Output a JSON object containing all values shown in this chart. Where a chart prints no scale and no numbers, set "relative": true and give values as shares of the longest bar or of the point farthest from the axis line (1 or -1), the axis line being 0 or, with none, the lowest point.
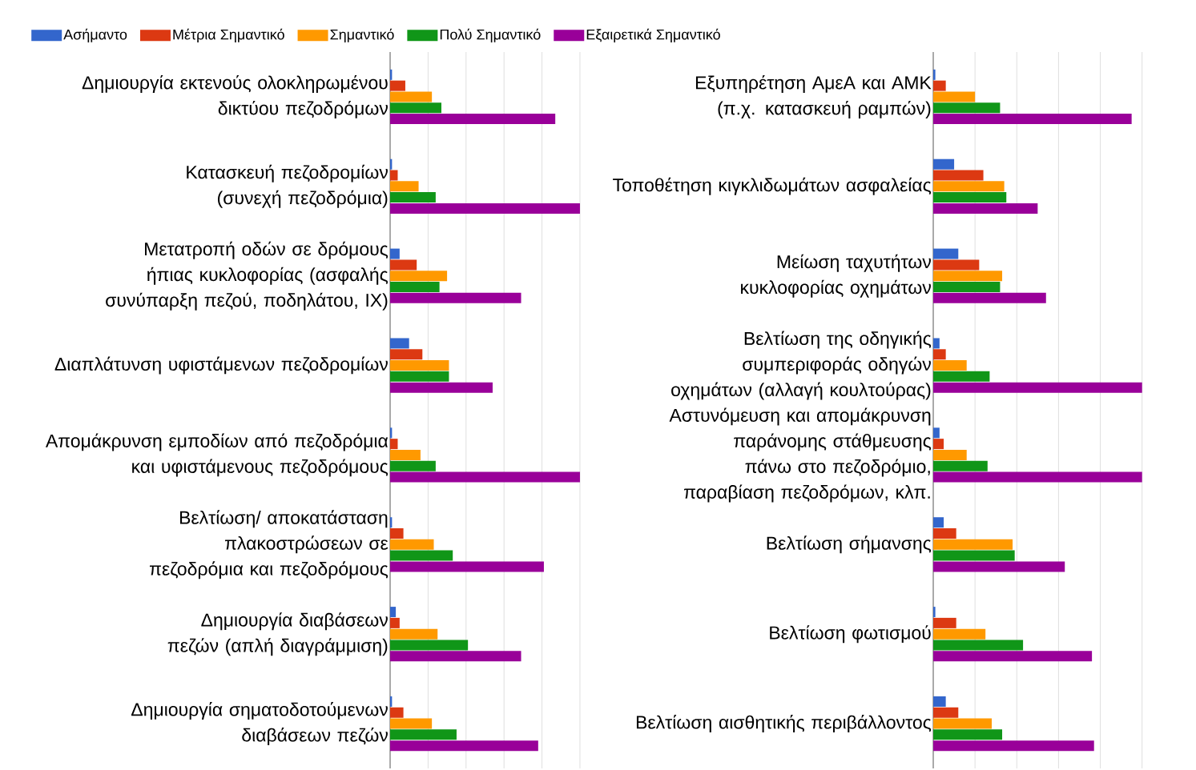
{
  "chart_data": [
    {
      "type": "bar",
      "orientation": "horizontal",
      "relative": true,
      "grid": "x",
      "tick_labels": "y",
      "legend": "top",
      "categories": [
        "Δημιουργία εκτενούς ολοκληρωμένου δικτύου πεζοδρόμων",
        "Κατασκευή πεζοδρομίων (συνεχή πεζοδρόμια)",
        "Μετατροπή οδών σε δρόμους ήπιας κυκλοφορίας (ασφαλής συνύπαρξη πεζού, ποδηλάτου, ΙΧ)",
        "Διαπλάτυνση υφιστάμενων πεζοδρομίων",
        "Απομάκρυνση εμποδίων από πεζοδρόμια και υφιστάμενους πεζοδρόμους",
        "Βελτίωση/ αποκατάσταση πλακοστρώσεων σε πεζοδρόμια και πεζοδρόμους",
        "Δημιουργία διαβάσεων πεζών (απλή διαγράμμιση)",
        "Δημιουργία σηματοδοτούμενων διαβάσεων πεζών"
      ],
      "series": [
        {
          "name": "Ασήμαντο",
          "color": "#3366cc",
          "values": [
            0.01,
            0.01,
            0.05,
            0.1,
            0.01,
            0.01,
            0.03,
            0.01
          ]
        },
        {
          "name": "Μέτρια Σημαντικό",
          "color": "#dc3912",
          "values": [
            0.08,
            0.04,
            0.14,
            0.17,
            0.04,
            0.07,
            0.05,
            0.07
          ]
        },
        {
          "name": "Σημαντικό",
          "color": "#ff9900",
          "values": [
            0.22,
            0.15,
            0.3,
            0.31,
            0.16,
            0.23,
            0.25,
            0.22
          ]
        },
        {
          "name": "Πολύ Σημαντικό",
          "color": "#109618",
          "values": [
            0.27,
            0.24,
            0.26,
            0.31,
            0.24,
            0.33,
            0.41,
            0.35
          ]
        },
        {
          "name": "Εξαιρετικά Σημαντικό",
          "color": "#990099",
          "values": [
            0.87,
            1,
            0.69,
            0.54,
            1,
            0.81,
            0.69,
            0.78
          ]
        }
      ]
    },
    {
      "type": "bar",
      "orientation": "horizontal",
      "relative": true,
      "grid": "x",
      "tick_labels": "y",
      "categories": [
        "Εξυπηρέτηση ΑμεΑ και ΑΜΚ (π.χ. κατασκευή ραμπών)",
        "Τοποθέτηση κιγκλιδωμάτων ασφαλείας",
        "Μείωση ταχυτήτων κυκλοφορίας οχημάτων",
        "Βελτίωση της οδηγικής συμπεριφοράς οδηγών οχημάτων (αλλαγή κουλτούρας)",
        "Αστυνόμευση και απομάκρυνση παράνομης στάθμευσης πάνω στο πεζοδρόμιο, παραβίαση πεζοδρόμων, κλπ.",
        "Βελτίωση σήμανσης",
        "Βελτίωση φωτισμού",
        "Βελτίωση αισθητικής περιβάλλοντος"
      ],
      "series": [
        {
          "color": "#3366cc",
          "values": [
            0.01,
            0.1,
            0.12,
            0.03,
            0.03,
            0.05,
            0.01,
            0.06
          ]
        },
        {
          "color": "#dc3912",
          "values": [
            0.06,
            0.24,
            0.22,
            0.06,
            0.05,
            0.11,
            0.11,
            0.12
          ]
        },
        {
          "color": "#ff9900",
          "values": [
            0.2,
            0.34,
            0.33,
            0.16,
            0.16,
            0.38,
            0.25,
            0.28
          ]
        },
        {
          "color": "#109618",
          "values": [
            0.32,
            0.35,
            0.32,
            0.27,
            0.26,
            0.39,
            0.43,
            0.33
          ]
        },
        {
          "color": "#990099",
          "values": [
            0.95,
            0.5,
            0.54,
            1,
            1,
            0.63,
            0.76,
            0.77
          ]
        }
      ]
    }
  ]
}
